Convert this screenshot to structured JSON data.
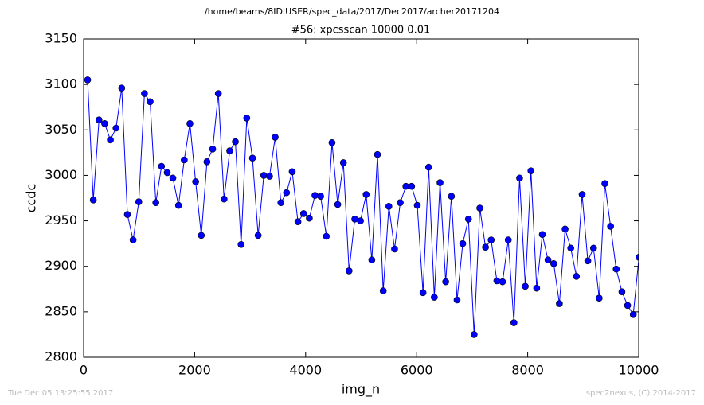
{
  "chart_data": {
    "type": "line",
    "suptitle": "/home/beams/8IDIUSER/spec_data/2017/Dec2017/archer20171204",
    "title": "#56: xpcsscan 10000 0.01",
    "x_label": "img_n",
    "y_label": "ccdc",
    "footer_left": "Tue Dec 05 13:25:55 2017",
    "footer_right": "spec2nexus, (C) 2014-2017",
    "x": [
      72,
      174,
      277,
      379,
      482,
      584,
      686,
      789,
      891,
      994,
      1096,
      1198,
      1301,
      1403,
      1506,
      1608,
      1710,
      1813,
      1915,
      2018,
      2120,
      2222,
      2325,
      2427,
      2530,
      2632,
      2734,
      2837,
      2939,
      3042,
      3144,
      3246,
      3349,
      3451,
      3554,
      3656,
      3758,
      3861,
      3963,
      4066,
      4168,
      4270,
      4373,
      4475,
      4578,
      4680,
      4782,
      4885,
      4987,
      5090,
      5192,
      5294,
      5397,
      5499,
      5602,
      5704,
      5806,
      5909,
      6011,
      6114,
      6216,
      6318,
      6421,
      6523,
      6626,
      6728,
      6830,
      6933,
      7035,
      7138,
      7240,
      7342,
      7445,
      7547,
      7650,
      7752,
      7854,
      7957,
      8059,
      8162,
      8264,
      8366,
      8469,
      8571,
      8674,
      8776,
      8878,
      8981,
      9083,
      9186,
      9288,
      9390,
      9493,
      9595,
      9698,
      9800,
      9902,
      10005
    ],
    "series": [
      {
        "name": "ccdc",
        "color": "#0000ff",
        "values": [
          3105,
          2973,
          3061,
          3057,
          3039,
          3052,
          3096,
          2957,
          2929,
          2971,
          3090,
          3081,
          2970,
          3010,
          3003,
          2997,
          2967,
          3017,
          3057,
          2993,
          2934,
          3015,
          3029,
          3090,
          2974,
          3027,
          3037,
          2924,
          3063,
          3019,
          2934,
          3000,
          2999,
          3042,
          2970,
          2981,
          3004,
          2949,
          2958,
          2953,
          2978,
          2977,
          2933,
          3036,
          2968,
          3014,
          2895,
          2952,
          2950,
          2979,
          2907,
          3023,
          2873,
          2966,
          2919,
          2970,
          2988,
          2988,
          2967,
          2871,
          3009,
          2866,
          2992,
          2883,
          2977,
          2863,
          2925,
          2952,
          2825,
          2964,
          2921,
          2929,
          2884,
          2883,
          2929,
          2838,
          2997,
          2878,
          3005,
          2876,
          2935,
          2907,
          2903,
          2859,
          2941,
          2920,
          2889,
          2979,
          2906,
          2920,
          2865,
          2991,
          2944,
          2897,
          2872,
          2857,
          2847,
          2910
        ]
      }
    ],
    "xlim": [
      0,
      10000
    ],
    "ylim": [
      2800,
      3150
    ],
    "xticks": [
      0,
      2000,
      4000,
      6000,
      8000,
      10000
    ],
    "yticks": [
      2800,
      2850,
      2900,
      2950,
      3000,
      3050,
      3100,
      3150
    ],
    "grid": false,
    "legend": false
  }
}
